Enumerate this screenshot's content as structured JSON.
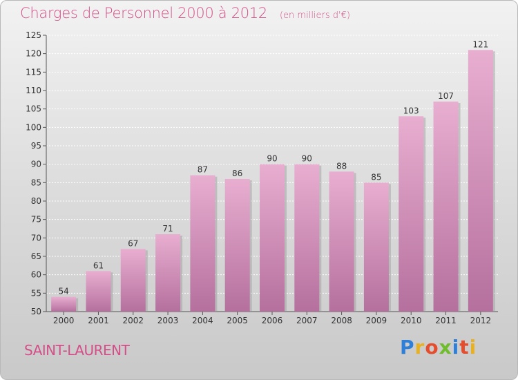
{
  "header": {
    "title": "Charges de Personnel 2000 à 2012",
    "subtitle": "(en milliers d'€)"
  },
  "footer": {
    "city": "SAINT-LAURENT",
    "logo_text": "Proxiti"
  },
  "colors": {
    "title": "#d34f88",
    "bar_top": "#e8aed0",
    "bar_bottom": "#b5709e",
    "logo": [
      "#2e7fd8",
      "#e8b121",
      "#e44d2e",
      "#6fbd2c",
      "#2e7fd8",
      "#e44d2e",
      "#e8b121"
    ]
  },
  "chart_data": {
    "type": "bar",
    "title": "Charges de Personnel 2000 à 2012",
    "subtitle": "(en milliers d'€)",
    "categories": [
      "2000",
      "2001",
      "2002",
      "2003",
      "2004",
      "2005",
      "2006",
      "2007",
      "2008",
      "2009",
      "2010",
      "2011",
      "2012"
    ],
    "values": [
      54,
      61,
      67,
      71,
      87,
      86,
      90,
      90,
      88,
      85,
      103,
      107,
      121
    ],
    "ylim": [
      50,
      125
    ],
    "yticks": [
      50,
      55,
      60,
      65,
      70,
      75,
      80,
      85,
      90,
      95,
      100,
      105,
      110,
      115,
      120,
      125
    ],
    "grid": true,
    "data_labels": true
  }
}
